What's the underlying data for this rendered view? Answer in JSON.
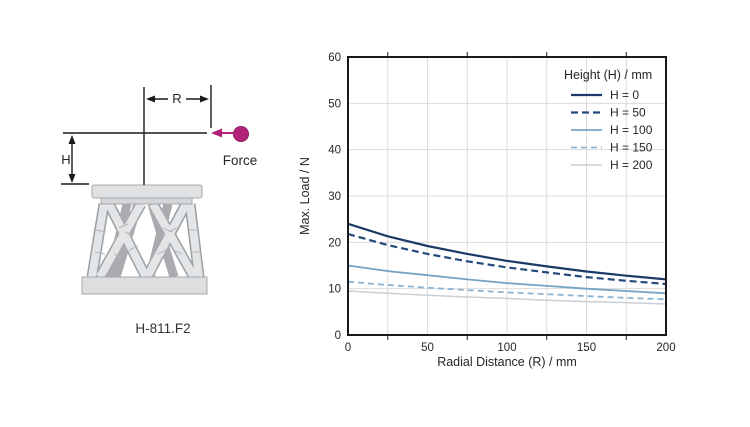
{
  "diagram": {
    "labels": {
      "radius": "R",
      "height": "H",
      "force": "Force"
    },
    "caption": "H-811.F2",
    "colors": {
      "force_accent": "#b32077",
      "annotation_line": "#1a1a1a",
      "body_light": "#dfe1e3",
      "body_mid": "#d4d6d8",
      "body_dark": "#a9abae",
      "outline": "#9aa0a4"
    }
  },
  "chart_data": {
    "type": "line",
    "title": "",
    "xlabel": "Radial Distance (R) / mm",
    "ylabel": "Max. Load / N",
    "xlim": [
      0,
      200
    ],
    "ylim": [
      0,
      60
    ],
    "x_major_ticks": [
      0,
      50,
      100,
      150,
      200
    ],
    "x_minor_ticks": [
      25,
      75,
      125,
      175
    ],
    "y_ticks": [
      0,
      10,
      20,
      30,
      40,
      50,
      60
    ],
    "x_grid_step": 25,
    "y_grid_step": 10,
    "grid": true,
    "grid_color": "#dcdcdc",
    "axis_color": "#1a1a1a",
    "tick_text_color": "#262626",
    "legend": {
      "title": "Height (H) / mm",
      "position": "top-right"
    },
    "x": [
      0,
      25,
      50,
      75,
      100,
      125,
      150,
      175,
      200
    ],
    "series": [
      {
        "name": "H = 0",
        "color": "#1b3a67",
        "dash": "",
        "width": 2.2,
        "values": [
          24.0,
          21.3,
          19.2,
          17.5,
          16.0,
          14.8,
          13.7,
          12.8,
          12.0
        ]
      },
      {
        "name": "H = 50",
        "color": "#24497c",
        "dash": "7 4",
        "width": 2.2,
        "values": [
          21.8,
          19.4,
          17.5,
          15.9,
          14.6,
          13.5,
          12.5,
          11.7,
          11.0
        ]
      },
      {
        "name": "H = 100",
        "color": "#74a3c6",
        "dash": "",
        "width": 1.8,
        "values": [
          15.0,
          13.8,
          12.9,
          12.0,
          11.2,
          10.6,
          10.0,
          9.5,
          9.0
        ]
      },
      {
        "name": "H = 150",
        "color": "#8db3d2",
        "dash": "6 4",
        "width": 1.8,
        "values": [
          11.5,
          10.8,
          10.2,
          9.7,
          9.2,
          8.8,
          8.4,
          8.0,
          7.7
        ]
      },
      {
        "name": "H = 200",
        "color": "#c9cfd5",
        "dash": "",
        "width": 1.5,
        "values": [
          9.5,
          9.0,
          8.6,
          8.2,
          7.9,
          7.5,
          7.2,
          7.0,
          6.7
        ]
      }
    ]
  }
}
